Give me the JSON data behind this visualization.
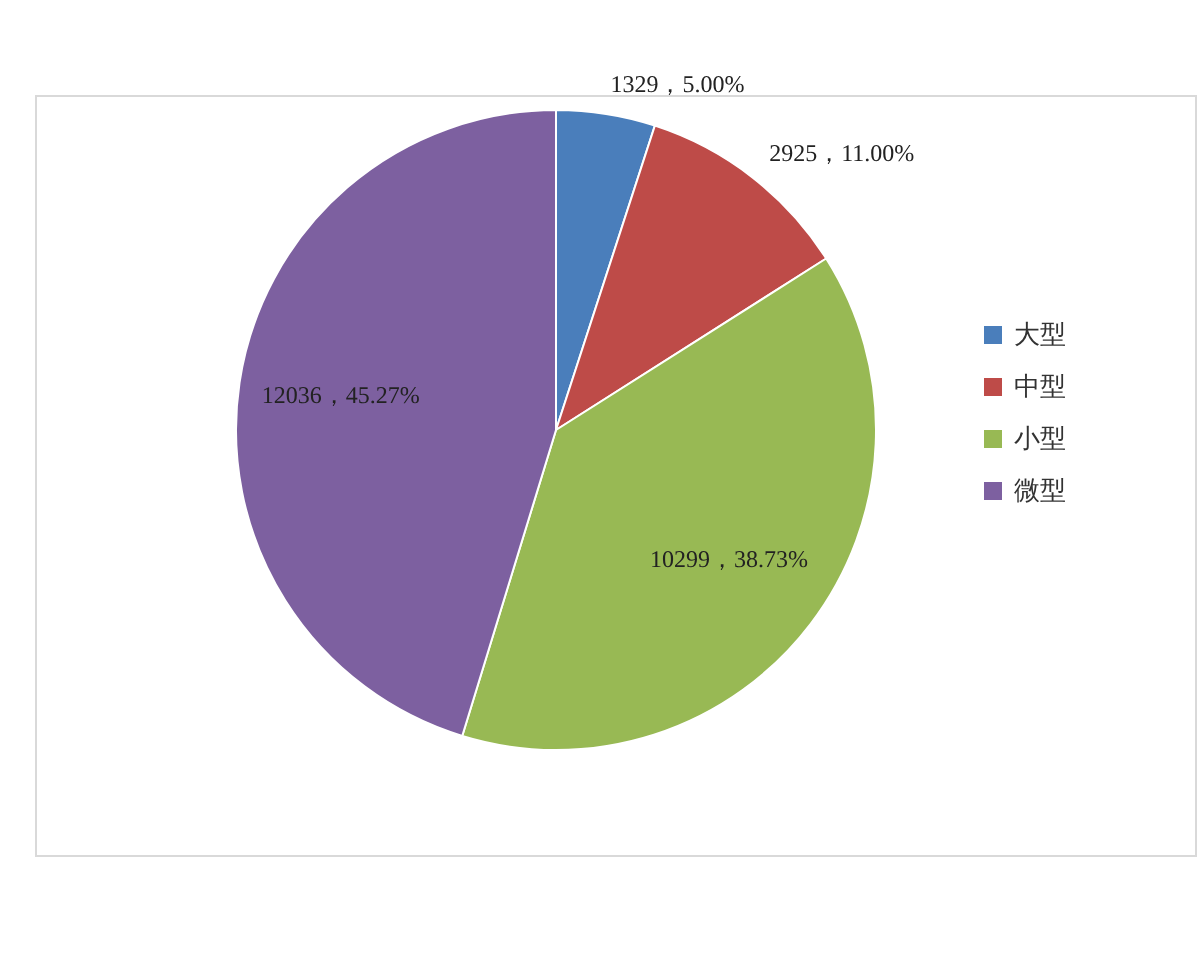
{
  "chart_data": {
    "type": "pie",
    "categories": [
      "大型",
      "中型",
      "小型",
      "微型"
    ],
    "values": [
      1329,
      2925,
      10299,
      12036
    ],
    "colors": [
      "#4a7ebb",
      "#be4b48",
      "#98b954",
      "#7d60a0"
    ],
    "value_labels": [
      "1329，5.00%",
      "2925，11.00%",
      "10299，38.73%",
      "12036，45.27%"
    ],
    "legend": "right"
  }
}
